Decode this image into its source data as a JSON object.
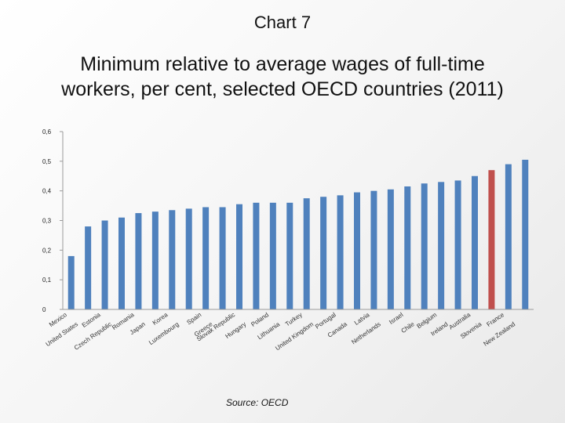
{
  "header": {
    "chart_number": "Chart 7",
    "title_line1": "Minimum relative to average wages of full-time",
    "title_line2": "workers, per cent, selected OECD countries (2011)"
  },
  "footer": {
    "source": "Source: OECD"
  },
  "colors": {
    "bar": "#4f81bd",
    "highlight": "#c0504d",
    "axis": "#9a9a9a"
  },
  "chart_data": {
    "type": "bar",
    "title": "Minimum relative to average wages of full-time workers, per cent, selected OECD countries (2011)",
    "xlabel": "",
    "ylabel": "",
    "ylim": [
      0,
      0.6
    ],
    "yticks": [
      0,
      0.1,
      0.2,
      0.3,
      0.4,
      0.5,
      0.6
    ],
    "ytick_labels": [
      "0",
      "0,1",
      "0,2",
      "0,3",
      "0,4",
      "0,5",
      "0,6"
    ],
    "grid": false,
    "highlight_category": "Slovenia",
    "categories": [
      "Mexico",
      "United States",
      "Estonia",
      "Czech Republic",
      "Romania",
      "Japan",
      "Korea",
      "Luxembourg",
      "Spain",
      "Greece",
      "Slovak Republic",
      "Hungary",
      "Poland",
      "Lithuania",
      "Turkey",
      "United Kingdom",
      "Portugal",
      "Canada",
      "Latvia",
      "Netherlands",
      "Israel",
      "Chile",
      "Belgium",
      "Ireland",
      "Australia",
      "Slovenia",
      "France",
      "New Zealand"
    ],
    "values": [
      0.18,
      0.28,
      0.3,
      0.31,
      0.325,
      0.33,
      0.335,
      0.34,
      0.345,
      0.345,
      0.355,
      0.36,
      0.36,
      0.36,
      0.375,
      0.38,
      0.385,
      0.395,
      0.4,
      0.405,
      0.415,
      0.425,
      0.43,
      0.435,
      0.45,
      0.47,
      0.49,
      0.505
    ]
  }
}
